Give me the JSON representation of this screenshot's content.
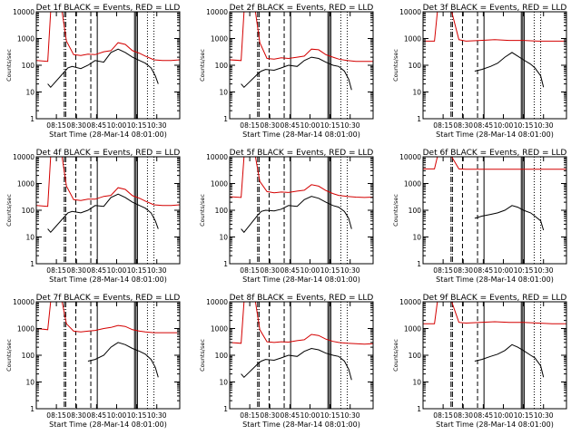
{
  "chart_data": [
    {
      "type": "line",
      "title": "Det 1f BLACK = Events, RED = LLD",
      "xlabel": "Start Time (28-Mar-14 08:01:00)",
      "ylabel": "Counts/sec",
      "yscale": "log",
      "ylim": [
        1,
        10000
      ],
      "yticks": [
        "1",
        "10",
        "100",
        "1000",
        "10000"
      ],
      "xticks": [
        "08:15",
        "08:30",
        "08:45",
        "10:00",
        "10:15",
        "10:30"
      ],
      "series": [
        {
          "color": "#000000",
          "x": [
            0.08,
            0.1,
            0.2,
            0.22,
            0.25,
            0.31,
            0.36,
            0.41,
            0.47,
            0.52,
            0.57,
            0.62,
            0.67,
            0.72,
            0.76,
            0.8,
            0.83,
            0.85
          ],
          "y": [
            20,
            15,
            60,
            80,
            90,
            75,
            100,
            150,
            130,
            300,
            400,
            300,
            200,
            150,
            120,
            80,
            40,
            20
          ]
        },
        {
          "color": "#d40000",
          "x": [
            0,
            0.08,
            0.1,
            0.12,
            0.18,
            0.21,
            0.26,
            0.31,
            0.36,
            0.41,
            0.47,
            0.52,
            0.57,
            0.62,
            0.67,
            0.72,
            0.76,
            0.82,
            0.88,
            0.94,
            1.0
          ],
          "y": [
            150,
            140,
            10000,
            10000,
            10000,
            800,
            250,
            230,
            260,
            250,
            320,
            350,
            700,
            600,
            350,
            280,
            220,
            160,
            150,
            150,
            160
          ]
        }
      ],
      "markers": [
        "-.",
        "-.",
        "--",
        "--",
        "-",
        "-",
        "-",
        "-",
        ":",
        ":"
      ]
    },
    {
      "type": "line",
      "title": "Det 2f BLACK = Events, RED = LLD",
      "xlabel": "Start Time (28-Mar-14 08:01:00)",
      "ylabel": "Counts/sec",
      "yscale": "log",
      "ylim": [
        1,
        10000
      ],
      "yticks": [
        "1",
        "10",
        "100",
        "1000",
        "10000"
      ],
      "xticks": [
        "08:15",
        "08:30",
        "08:45",
        "10:00",
        "10:15",
        "10:30"
      ],
      "series": [
        {
          "color": "#000000",
          "x": [
            0.08,
            0.1,
            0.2,
            0.22,
            0.25,
            0.31,
            0.36,
            0.41,
            0.47,
            0.52,
            0.57,
            0.62,
            0.67,
            0.72,
            0.76,
            0.8,
            0.83,
            0.85
          ],
          "y": [
            20,
            15,
            50,
            60,
            70,
            65,
            80,
            100,
            90,
            150,
            200,
            180,
            130,
            100,
            90,
            60,
            30,
            12
          ]
        },
        {
          "color": "#d40000",
          "x": [
            0,
            0.08,
            0.1,
            0.12,
            0.18,
            0.21,
            0.26,
            0.31,
            0.36,
            0.41,
            0.47,
            0.52,
            0.57,
            0.62,
            0.67,
            0.72,
            0.76,
            0.82,
            0.88,
            0.94,
            1.0
          ],
          "y": [
            160,
            150,
            10000,
            10000,
            10000,
            700,
            180,
            170,
            190,
            180,
            200,
            220,
            400,
            380,
            250,
            200,
            170,
            150,
            140,
            140,
            140
          ]
        }
      ],
      "markers": [
        "-.",
        "-.",
        "--",
        "--",
        "-",
        "-",
        "-",
        "-",
        ":",
        ":"
      ]
    },
    {
      "type": "line",
      "title": "Det 3f BLACK = Events, RED = LLD",
      "xlabel": "Start Time (28-Mar-14 08:01:00)",
      "ylabel": "Counts/sec",
      "yscale": "log",
      "ylim": [
        1,
        10000
      ],
      "yticks": [
        "1",
        "10",
        "100",
        "1000",
        "10000"
      ],
      "xticks": [
        "08:15",
        "08:30",
        "08:45",
        "10:00",
        "10:15",
        "10:30"
      ],
      "series": [
        {
          "color": "#000000",
          "x": [
            0.36,
            0.41,
            0.47,
            0.52,
            0.57,
            0.62,
            0.66,
            0.7,
            0.75,
            0.78,
            0.82,
            0.84
          ],
          "y": [
            60,
            70,
            90,
            120,
            200,
            300,
            220,
            160,
            110,
            80,
            40,
            15
          ]
        },
        {
          "color": "#d40000",
          "x": [
            0,
            0.08,
            0.1,
            0.12,
            0.2,
            0.25,
            0.3,
            0.4,
            0.5,
            0.6,
            0.7,
            0.8,
            0.9,
            1.0
          ],
          "y": [
            800,
            800,
            10000,
            10000,
            10000,
            900,
            800,
            850,
            900,
            850,
            850,
            800,
            800,
            800
          ]
        }
      ],
      "markers": [
        "-.",
        "-.",
        "--",
        "--",
        "-",
        "-",
        "-",
        "-",
        ":",
        ":"
      ]
    },
    {
      "type": "line",
      "title": "Det 4f BLACK = Events, RED = LLD",
      "xlabel": "Start Time (28-Mar-14 08:01:00)",
      "ylabel": "Counts/sec",
      "yscale": "log",
      "ylim": [
        1,
        10000
      ],
      "yticks": [
        "1",
        "10",
        "100",
        "1000",
        "10000"
      ],
      "xticks": [
        "08:15",
        "08:30",
        "08:45",
        "10:00",
        "10:15",
        "10:30"
      ],
      "series": [
        {
          "color": "#000000",
          "x": [
            0.08,
            0.1,
            0.2,
            0.22,
            0.25,
            0.31,
            0.36,
            0.41,
            0.47,
            0.52,
            0.57,
            0.62,
            0.67,
            0.72,
            0.76,
            0.8,
            0.83,
            0.85
          ],
          "y": [
            20,
            15,
            60,
            80,
            90,
            80,
            100,
            150,
            140,
            300,
            400,
            300,
            200,
            150,
            120,
            80,
            40,
            20
          ]
        },
        {
          "color": "#d40000",
          "x": [
            0,
            0.08,
            0.1,
            0.12,
            0.18,
            0.21,
            0.26,
            0.31,
            0.36,
            0.41,
            0.47,
            0.52,
            0.57,
            0.62,
            0.67,
            0.72,
            0.76,
            0.82,
            0.88,
            0.94,
            1.0
          ],
          "y": [
            150,
            140,
            10000,
            10000,
            10000,
            800,
            250,
            230,
            260,
            260,
            330,
            360,
            700,
            600,
            350,
            280,
            220,
            160,
            150,
            150,
            160
          ]
        }
      ],
      "markers": [
        "-.",
        "-.",
        "--",
        "--",
        "-",
        "-",
        "-",
        "-",
        ":",
        ":"
      ]
    },
    {
      "type": "line",
      "title": "Det 5f BLACK = Events, RED = LLD",
      "xlabel": "Start Time (28-Mar-14 08:01:00)",
      "ylabel": "Counts/sec",
      "yscale": "log",
      "ylim": [
        1,
        10000
      ],
      "yticks": [
        "1",
        "10",
        "100",
        "1000",
        "10000"
      ],
      "xticks": [
        "08:15",
        "08:30",
        "08:45",
        "10:00",
        "10:15",
        "10:30"
      ],
      "series": [
        {
          "color": "#000000",
          "x": [
            0.08,
            0.1,
            0.2,
            0.22,
            0.25,
            0.31,
            0.36,
            0.41,
            0.47,
            0.52,
            0.57,
            0.62,
            0.67,
            0.72,
            0.76,
            0.8,
            0.83,
            0.85
          ],
          "y": [
            20,
            15,
            70,
            90,
            100,
            95,
            110,
            150,
            140,
            250,
            330,
            280,
            200,
            150,
            130,
            90,
            50,
            20
          ]
        },
        {
          "color": "#d40000",
          "x": [
            0,
            0.08,
            0.1,
            0.12,
            0.18,
            0.21,
            0.26,
            0.31,
            0.36,
            0.41,
            0.47,
            0.52,
            0.57,
            0.62,
            0.67,
            0.72,
            0.76,
            0.82,
            0.88,
            0.94,
            1.0
          ],
          "y": [
            320,
            300,
            10000,
            10000,
            10000,
            1200,
            500,
            450,
            480,
            460,
            520,
            560,
            900,
            800,
            550,
            420,
            360,
            330,
            310,
            300,
            310
          ]
        }
      ],
      "markers": [
        "-.",
        "-.",
        "--",
        "--",
        "-",
        "-",
        "-",
        "-",
        ":",
        ":"
      ]
    },
    {
      "type": "line",
      "title": "Det 6f BLACK = Events, RED = LLD",
      "xlabel": "Start Time (28-Mar-14 08:01:00)",
      "ylabel": "Counts/sec",
      "yscale": "log",
      "ylim": [
        1,
        10000
      ],
      "yticks": [
        "1",
        "10",
        "100",
        "1000",
        "10000"
      ],
      "xticks": [
        "08:15",
        "08:30",
        "08:45",
        "10:00",
        "10:15",
        "10:30"
      ],
      "series": [
        {
          "color": "#000000",
          "x": [
            0.36,
            0.41,
            0.47,
            0.52,
            0.57,
            0.62,
            0.66,
            0.7,
            0.75,
            0.78,
            0.82,
            0.84
          ],
          "y": [
            50,
            60,
            70,
            80,
            100,
            150,
            130,
            100,
            80,
            60,
            40,
            18
          ]
        },
        {
          "color": "#d40000",
          "x": [
            0,
            0.08,
            0.1,
            0.12,
            0.2,
            0.25,
            0.3,
            0.4,
            0.5,
            0.6,
            0.7,
            0.8,
            0.9,
            1.0
          ],
          "y": [
            3500,
            3500,
            10000,
            10000,
            10000,
            3500,
            3400,
            3400,
            3400,
            3400,
            3400,
            3400,
            3400,
            3400
          ]
        }
      ],
      "markers": [
        "-.",
        "-.",
        "--",
        "--",
        "-",
        "-",
        "-",
        "-",
        ":",
        ":"
      ]
    },
    {
      "type": "line",
      "title": "Det 7f BLACK = Events, RED = LLD",
      "xlabel": "Start Time (28-Mar-14 08:01:00)",
      "ylabel": "Counts/sec",
      "yscale": "log",
      "ylim": [
        1,
        10000
      ],
      "yticks": [
        "1",
        "10",
        "100",
        "1000",
        "10000"
      ],
      "xticks": [
        "08:15",
        "08:30",
        "08:45",
        "10:00",
        "10:15",
        "10:30"
      ],
      "series": [
        {
          "color": "#000000",
          "x": [
            0.36,
            0.41,
            0.47,
            0.52,
            0.57,
            0.62,
            0.67,
            0.72,
            0.76,
            0.8,
            0.83,
            0.85
          ],
          "y": [
            60,
            70,
            100,
            200,
            300,
            250,
            180,
            140,
            110,
            70,
            35,
            15
          ]
        },
        {
          "color": "#d40000",
          "x": [
            0,
            0.08,
            0.1,
            0.12,
            0.18,
            0.21,
            0.26,
            0.31,
            0.36,
            0.41,
            0.47,
            0.52,
            0.57,
            0.62,
            0.67,
            0.72,
            0.76,
            0.82,
            0.88,
            0.94,
            1.0
          ],
          "y": [
            1000,
            900,
            10000,
            10000,
            10000,
            1500,
            800,
            750,
            800,
            850,
            1000,
            1100,
            1300,
            1200,
            900,
            800,
            750,
            700,
            700,
            700,
            700
          ]
        }
      ],
      "markers": [
        "-.",
        "-.",
        "--",
        "--",
        "-",
        "-",
        "-",
        "-",
        ":",
        ":"
      ]
    },
    {
      "type": "line",
      "title": "Det 8f BLACK = Events, RED = LLD",
      "xlabel": "Start Time (28-Mar-14 08:01:00)",
      "ylabel": "Counts/sec",
      "yscale": "log",
      "ylim": [
        1,
        10000
      ],
      "yticks": [
        "1",
        "10",
        "100",
        "1000",
        "10000"
      ],
      "xticks": [
        "08:15",
        "08:30",
        "08:45",
        "10:00",
        "10:15",
        "10:30"
      ],
      "series": [
        {
          "color": "#000000",
          "x": [
            0.08,
            0.1,
            0.2,
            0.22,
            0.25,
            0.31,
            0.36,
            0.41,
            0.47,
            0.52,
            0.57,
            0.62,
            0.67,
            0.72,
            0.76,
            0.8,
            0.83,
            0.85
          ],
          "y": [
            20,
            15,
            50,
            60,
            70,
            65,
            80,
            100,
            90,
            140,
            180,
            160,
            120,
            100,
            90,
            60,
            30,
            12
          ]
        },
        {
          "color": "#d40000",
          "x": [
            0,
            0.08,
            0.1,
            0.12,
            0.18,
            0.21,
            0.26,
            0.31,
            0.36,
            0.41,
            0.47,
            0.52,
            0.57,
            0.62,
            0.67,
            0.72,
            0.76,
            0.82,
            0.88,
            0.94,
            1.0
          ],
          "y": [
            300,
            280,
            10000,
            10000,
            10000,
            900,
            320,
            300,
            320,
            310,
            350,
            380,
            600,
            550,
            400,
            330,
            300,
            280,
            270,
            260,
            270
          ]
        }
      ],
      "markers": [
        "-.",
        "-.",
        "--",
        "--",
        "-",
        "-",
        "-",
        "-",
        ":",
        ":"
      ]
    },
    {
      "type": "line",
      "title": "Det 9f BLACK = Events, RED = LLD",
      "xlabel": "Start Time (28-Mar-14 08:01:00)",
      "ylabel": "Counts/sec",
      "yscale": "log",
      "ylim": [
        1,
        10000
      ],
      "yticks": [
        "1",
        "10",
        "100",
        "1000",
        "10000"
      ],
      "xticks": [
        "08:15",
        "08:30",
        "08:45",
        "10:00",
        "10:15",
        "10:30"
      ],
      "series": [
        {
          "color": "#000000",
          "x": [
            0.36,
            0.41,
            0.47,
            0.52,
            0.57,
            0.62,
            0.66,
            0.7,
            0.75,
            0.78,
            0.82,
            0.84
          ],
          "y": [
            60,
            70,
            90,
            110,
            150,
            250,
            200,
            150,
            100,
            80,
            40,
            15
          ]
        },
        {
          "color": "#d40000",
          "x": [
            0,
            0.08,
            0.1,
            0.12,
            0.2,
            0.25,
            0.3,
            0.4,
            0.5,
            0.6,
            0.7,
            0.8,
            0.9,
            1.0
          ],
          "y": [
            1500,
            1500,
            10000,
            10000,
            10000,
            1700,
            1600,
            1700,
            1800,
            1700,
            1700,
            1600,
            1500,
            1500
          ]
        }
      ],
      "markers": [
        "-.",
        "-.",
        "--",
        "--",
        "-",
        "-",
        "-",
        "-",
        ":",
        ":"
      ]
    }
  ]
}
